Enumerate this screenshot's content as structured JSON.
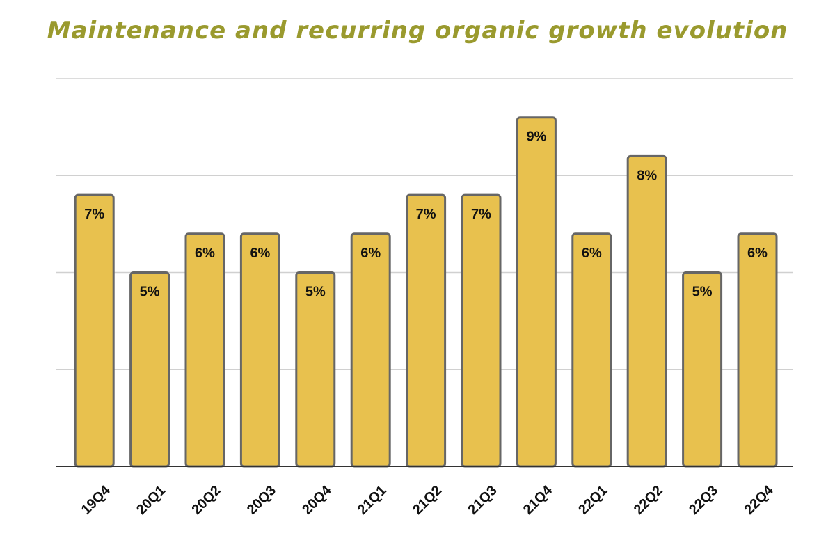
{
  "chart_data": {
    "type": "bar",
    "title": "Maintenance and recurring organic growth evolution",
    "categories": [
      "19Q4",
      "20Q1",
      "20Q2",
      "20Q3",
      "20Q4",
      "21Q1",
      "21Q2",
      "21Q3",
      "21Q4",
      "22Q1",
      "22Q2",
      "22Q3",
      "22Q4"
    ],
    "values": [
      7,
      5,
      6,
      6,
      5,
      6,
      7,
      7,
      9,
      6,
      8,
      5,
      6
    ],
    "data_labels": [
      "7%",
      "5%",
      "6%",
      "6%",
      "5%",
      "6%",
      "7%",
      "7%",
      "9%",
      "6%",
      "8%",
      "5%",
      "6%"
    ],
    "ylim": [
      0,
      10
    ],
    "grid": true,
    "legend": "none",
    "bar_color": "#e8c14e",
    "bar_edge_color": "#666666",
    "title_color": "#9a9a2e"
  }
}
